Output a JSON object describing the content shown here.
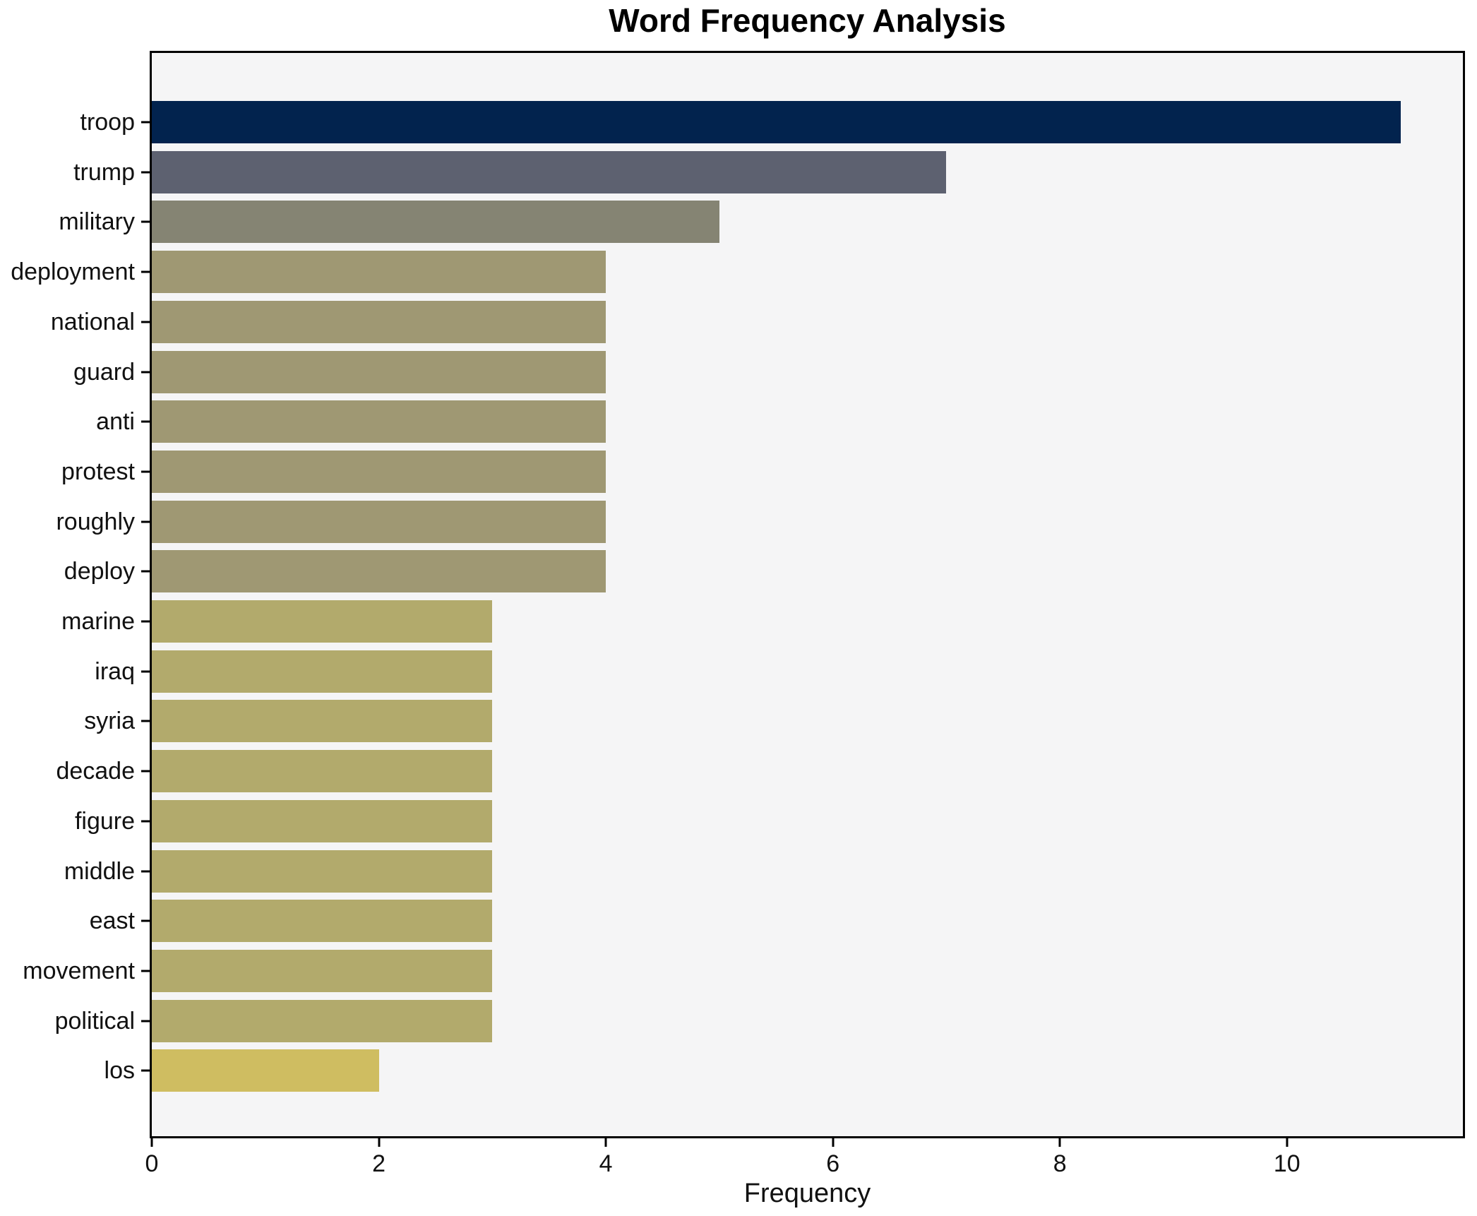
{
  "title": "Word Frequency Analysis",
  "chart_data": {
    "type": "bar",
    "orientation": "horizontal",
    "title": "Word Frequency Analysis",
    "xlabel": "Frequency",
    "ylabel": "",
    "categories": [
      "troop",
      "trump",
      "military",
      "deployment",
      "national",
      "guard",
      "anti",
      "protest",
      "roughly",
      "deploy",
      "marine",
      "iraq",
      "syria",
      "decade",
      "figure",
      "middle",
      "east",
      "movement",
      "political",
      "los"
    ],
    "values": [
      11,
      7,
      5,
      4,
      4,
      4,
      4,
      4,
      4,
      4,
      3,
      3,
      3,
      3,
      3,
      3,
      3,
      3,
      3,
      2
    ],
    "bar_colors": [
      "#02234e",
      "#5d6170",
      "#858473",
      "#9f9873",
      "#9f9873",
      "#9f9873",
      "#9f9873",
      "#9f9873",
      "#9f9873",
      "#9f9873",
      "#b2aa6c",
      "#b2aa6c",
      "#b2aa6c",
      "#b2aa6c",
      "#b2aa6c",
      "#b2aa6c",
      "#b2aa6c",
      "#b2aa6c",
      "#b2aa6c",
      "#cfbd61"
    ],
    "xlim": [
      0,
      11.55
    ],
    "xticks": [
      0,
      2,
      4,
      6,
      8,
      10
    ],
    "grid": false,
    "legend_position": "none",
    "plot_background": "#f5f5f6",
    "figure_background": "#ffffff",
    "spine_color": "#000000"
  }
}
